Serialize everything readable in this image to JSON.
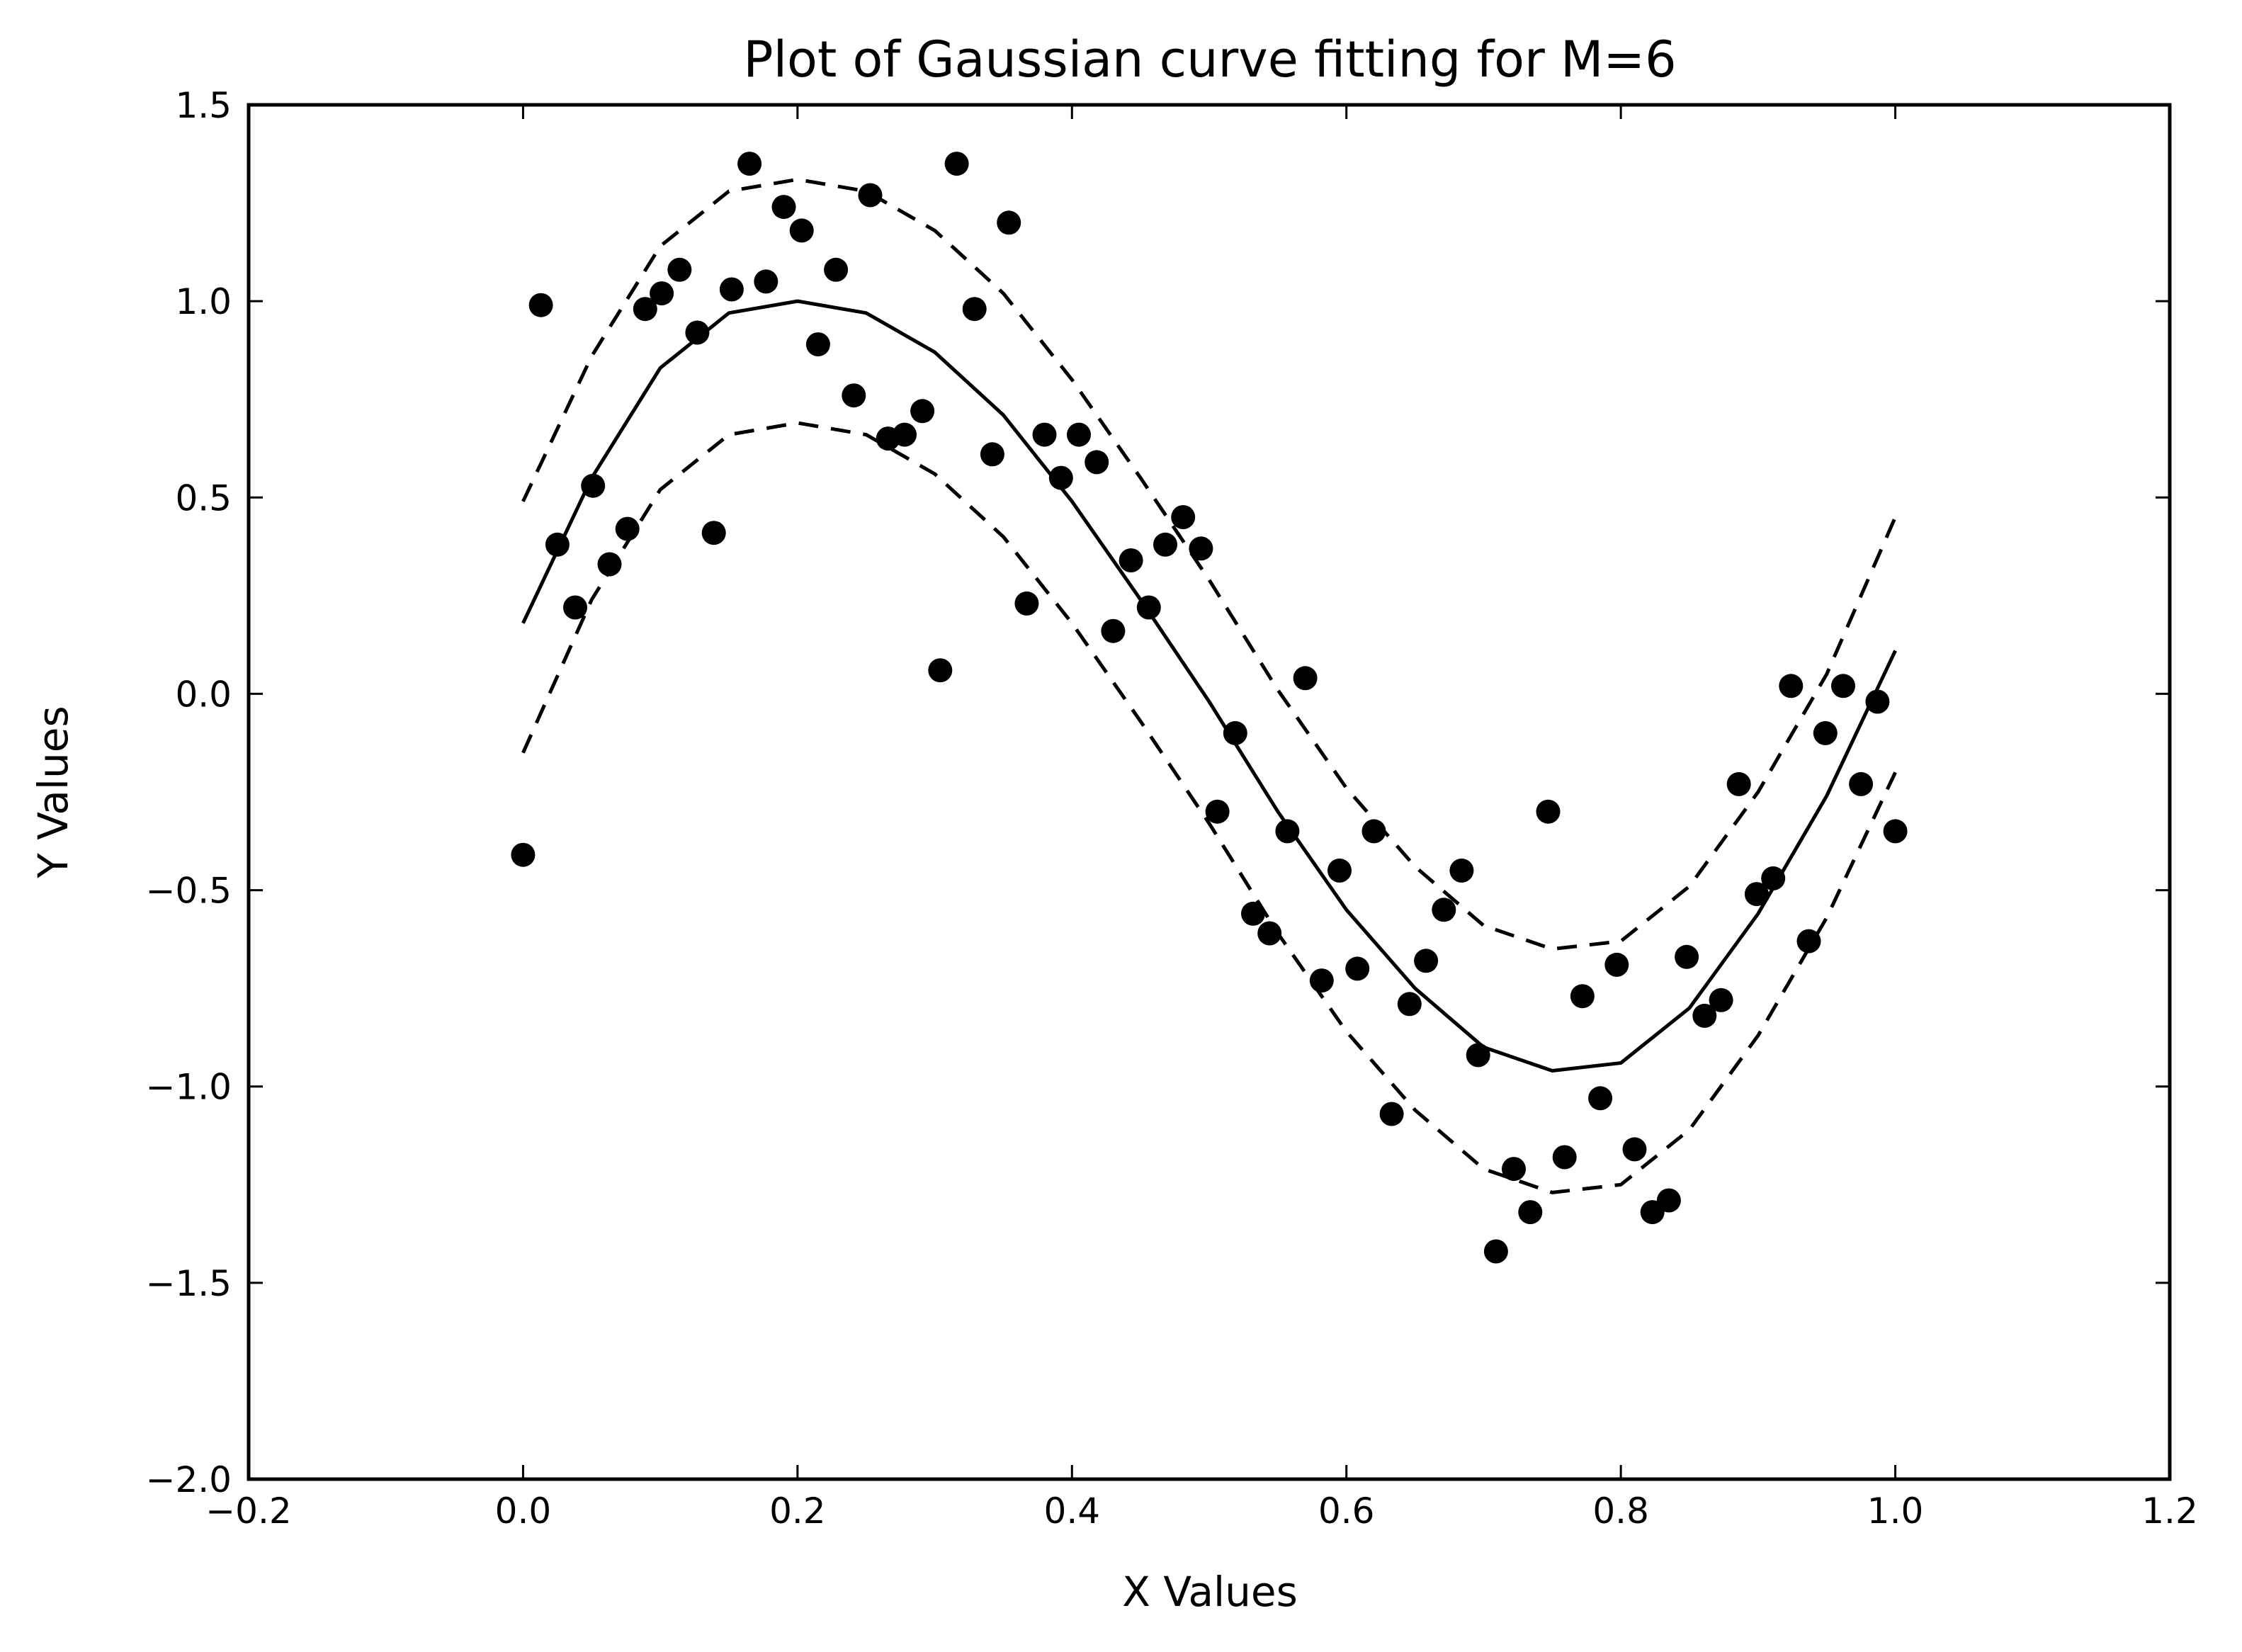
{
  "chart_data": {
    "type": "scatter",
    "title": "Plot of Gaussian curve fitting for M=6",
    "xlabel": "X Values",
    "ylabel": "Y Values",
    "xlim": [
      -0.2,
      1.2
    ],
    "ylim": [
      -2.0,
      1.5
    ],
    "xticks": [
      -0.2,
      0.0,
      0.2,
      0.4,
      0.6,
      0.8,
      1.0,
      1.2
    ],
    "yticks": [
      -2.0,
      -1.5,
      -1.0,
      -0.5,
      0.0,
      0.5,
      1.0,
      1.5
    ],
    "xtick_labels": [
      "−0.2",
      "0.0",
      "0.2",
      "0.4",
      "0.6",
      "0.8",
      "1.0",
      "1.2"
    ],
    "ytick_labels": [
      "−2.0",
      "−1.5",
      "−1.0",
      "−0.5",
      "0.0",
      "0.5",
      "1.0",
      "1.5"
    ],
    "grid": false,
    "colors": {
      "marks": "#000000",
      "background": "#ffffff"
    },
    "series": [
      {
        "style": "markers",
        "x": [
          0.0,
          0.013,
          0.025,
          0.038,
          0.051,
          0.063,
          0.076,
          0.089,
          0.101,
          0.114,
          0.127,
          0.139,
          0.152,
          0.165,
          0.177,
          0.19,
          0.203,
          0.215,
          0.228,
          0.241,
          0.253,
          0.266,
          0.278,
          0.291,
          0.304,
          0.316,
          0.329,
          0.342,
          0.354,
          0.367,
          0.38,
          0.392,
          0.405,
          0.418,
          0.43,
          0.443,
          0.456,
          0.468,
          0.481,
          0.494,
          0.506,
          0.519,
          0.532,
          0.544,
          0.557,
          0.57,
          0.582,
          0.595,
          0.608,
          0.62,
          0.633,
          0.646,
          0.658,
          0.671,
          0.684,
          0.696,
          0.709,
          0.722,
          0.734,
          0.747,
          0.759,
          0.772,
          0.785,
          0.797,
          0.81,
          0.823,
          0.835,
          0.848,
          0.861,
          0.873,
          0.886,
          0.899,
          0.911,
          0.924,
          0.937,
          0.949,
          0.962,
          0.975,
          0.987,
          1.0
        ],
        "y": [
          -0.41,
          0.99,
          0.38,
          0.22,
          0.53,
          0.33,
          0.42,
          0.98,
          1.02,
          1.08,
          0.92,
          0.41,
          1.03,
          1.35,
          1.05,
          1.24,
          1.18,
          0.89,
          1.08,
          0.76,
          1.27,
          0.65,
          0.66,
          0.72,
          0.06,
          1.35,
          0.98,
          0.61,
          1.2,
          0.23,
          0.66,
          0.55,
          0.66,
          0.59,
          0.16,
          0.34,
          0.22,
          0.38,
          0.45,
          0.37,
          -0.3,
          -0.1,
          -0.56,
          -0.61,
          -0.35,
          0.04,
          -0.73,
          -0.45,
          -0.7,
          -0.35,
          -1.07,
          -0.79,
          -0.68,
          -0.55,
          -0.45,
          -0.92,
          -1.42,
          -1.21,
          -1.32,
          -0.3,
          -1.18,
          -0.77,
          -1.03,
          -0.69,
          -1.16,
          -1.32,
          -1.29,
          -0.67,
          -0.82,
          -0.78,
          -0.23,
          -0.51,
          -0.47,
          0.02,
          -0.63,
          -0.1,
          0.02,
          -0.23,
          -0.02,
          -0.35
        ]
      },
      {
        "style": "solid",
        "x": [
          0.0,
          0.05,
          0.1,
          0.15,
          0.2,
          0.25,
          0.3,
          0.35,
          0.4,
          0.45,
          0.5,
          0.55,
          0.6,
          0.65,
          0.7,
          0.75,
          0.8,
          0.85,
          0.9,
          0.95,
          1.0
        ],
        "y": [
          0.18,
          0.55,
          0.83,
          0.97,
          1.0,
          0.97,
          0.87,
          0.71,
          0.49,
          0.24,
          -0.02,
          -0.3,
          -0.55,
          -0.75,
          -0.9,
          -0.96,
          -0.94,
          -0.8,
          -0.56,
          -0.26,
          0.11
        ]
      },
      {
        "style": "dashed",
        "x": [
          0.0,
          0.05,
          0.1,
          0.15,
          0.2,
          0.25,
          0.3,
          0.35,
          0.4,
          0.45,
          0.5,
          0.55,
          0.6,
          0.65,
          0.7,
          0.75,
          0.8,
          0.85,
          0.9,
          0.95,
          1.0
        ],
        "y": [
          0.49,
          0.86,
          1.14,
          1.28,
          1.31,
          1.28,
          1.18,
          1.02,
          0.8,
          0.55,
          0.29,
          0.01,
          -0.24,
          -0.44,
          -0.59,
          -0.65,
          -0.63,
          -0.49,
          -0.25,
          0.05,
          0.45
        ]
      },
      {
        "style": "dashed",
        "x": [
          0.0,
          0.05,
          0.1,
          0.15,
          0.2,
          0.25,
          0.3,
          0.35,
          0.4,
          0.45,
          0.5,
          0.55,
          0.6,
          0.65,
          0.7,
          0.75,
          0.8,
          0.85,
          0.9,
          0.95,
          1.0
        ],
        "y": [
          -0.15,
          0.24,
          0.52,
          0.66,
          0.69,
          0.66,
          0.56,
          0.4,
          0.18,
          -0.07,
          -0.33,
          -0.61,
          -0.86,
          -1.06,
          -1.21,
          -1.27,
          -1.25,
          -1.11,
          -0.87,
          -0.57,
          -0.2
        ]
      }
    ]
  }
}
